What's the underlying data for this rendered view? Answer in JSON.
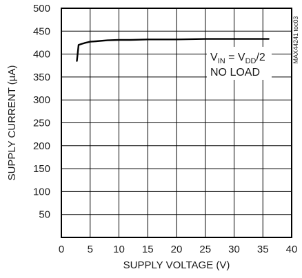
{
  "chart_data": {
    "type": "line",
    "title": "",
    "xlabel": "SUPPLY VOLTAGE (V)",
    "ylabel": "SUPPLY CURRENT (µA)",
    "xlim": [
      0,
      40
    ],
    "ylim": [
      0,
      500
    ],
    "x_ticks": [
      "0",
      "5",
      "10",
      "15",
      "20",
      "25",
      "30",
      "35",
      "40"
    ],
    "y_ticks": [
      "50",
      "100",
      "150",
      "200",
      "250",
      "300",
      "350",
      "400",
      "450",
      "500"
    ],
    "grid": true,
    "series": [
      {
        "x": [
          2.7,
          3.0,
          3.5,
          4.0,
          5.0,
          6.0,
          8.0,
          10.0,
          12.0,
          15.0,
          20.0,
          25.0,
          30.0,
          36.0
        ],
        "y": [
          385,
          420,
          422,
          424,
          427,
          428,
          430,
          431,
          431,
          432,
          432,
          433,
          433,
          433
        ]
      }
    ],
    "annotation": {
      "line1_parts": [
        "V",
        "IN",
        " = V",
        "DD",
        "/2"
      ],
      "line2": "NO LOAD"
    },
    "side_id": "MAX44241 toc03",
    "colors": {
      "line": "#000000",
      "grid": "#000000",
      "text": "#1a1a1a"
    }
  }
}
